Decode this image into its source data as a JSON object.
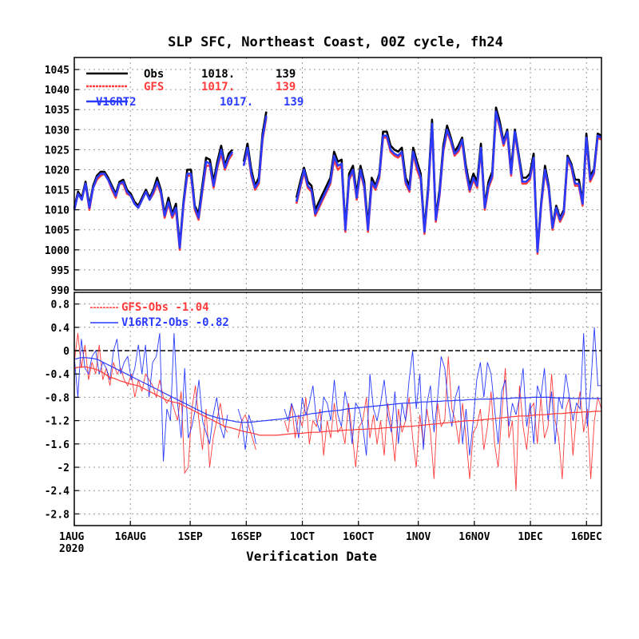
{
  "chart_data": [
    {
      "type": "line",
      "title": "SLP SFC, Northeast Coast, 00Z cycle, fh24",
      "xlabel": "Verification Date",
      "ylim": [
        990,
        1048
      ],
      "yticks": [
        "990",
        "995",
        "1000",
        "1005",
        "1010",
        "1015",
        "1020",
        "1025",
        "1030",
        "1035",
        "1040",
        "1045"
      ],
      "legend_position": "top-left",
      "series": [
        {
          "name": "Obs",
          "mean": "1018.",
          "count": "139",
          "color": "#000000"
        },
        {
          "name": "GFS",
          "mean": "1017.",
          "count": "139",
          "color": "#ff3b3b"
        },
        {
          "name": "V16RT2",
          "mean": "1017.",
          "count": "139",
          "color": "#2a3bff"
        }
      ],
      "x_start": "2020-08-01",
      "obs_values": [
        1010.5,
        1014.5,
        1013,
        1017,
        1011,
        1016,
        1018.5,
        1019.5,
        1019.5,
        1018,
        1016,
        1014,
        1017,
        1017.5,
        1015,
        1014,
        1012,
        1011,
        1013,
        1015,
        1013,
        1015,
        1018,
        1015,
        1009,
        1013,
        1009,
        1011.5,
        1001,
        1012,
        1020,
        1020,
        1011,
        1009,
        1016,
        1023,
        1022.5,
        1017,
        1022,
        1026,
        1021,
        1024,
        1025,
        null,
        null,
        1022,
        1026.5,
        1020,
        1016,
        1018,
        1029,
        1034.5,
        null,
        null,
        null,
        null,
        null,
        null,
        null,
        1013,
        1017,
        1020.5,
        1017,
        1016,
        1010,
        1012,
        1014,
        1016,
        1018,
        1024.5,
        1022,
        1022.5,
        1005.5,
        1019,
        1021,
        1014,
        1021,
        1017,
        1006,
        1018,
        1016,
        1019,
        1029.5,
        1029.5,
        1026,
        1025,
        1024.5,
        1025.5,
        1018,
        1016,
        1025.5,
        1022,
        1019,
        1005,
        1016,
        1032.5,
        1008,
        1015,
        1026,
        1031,
        1028,
        1024.5,
        1026,
        1028,
        1021,
        1016,
        1019,
        1017,
        1026.5,
        1011,
        1017,
        1019.5,
        1035.5,
        1032,
        1027,
        1030,
        1020,
        1030,
        1024,
        1018,
        1018,
        1019,
        1024,
        1000,
        1012,
        1021,
        1016,
        1006,
        1011,
        1008,
        1010,
        1023.5,
        1021.5,
        1017.5,
        1017.5,
        1012,
        1029,
        1018.5,
        1020,
        1029,
        1028.5
      ],
      "gfs_values": [
        1010,
        1014,
        1012.5,
        1016.5,
        1010,
        1015.5,
        1017.5,
        1018.5,
        1019,
        1017.5,
        1015,
        1013,
        1016.5,
        1016.5,
        1014,
        1013.5,
        1011.5,
        1010.5,
        1012.5,
        1014.5,
        1012.5,
        1014,
        1016.5,
        1014,
        1008,
        1011.5,
        1008,
        1010,
        1000,
        1011,
        1018.5,
        1018.5,
        1010,
        1007.5,
        1014.5,
        1021,
        1021,
        1015.5,
        1020.5,
        1024,
        1020,
        1022.5,
        1024,
        null,
        null,
        1021,
        1025,
        1018.5,
        1015,
        1016.5,
        1027.5,
        1033,
        null,
        null,
        null,
        null,
        null,
        null,
        null,
        1011.5,
        1015.5,
        1019.5,
        1015.5,
        1014.5,
        1008.5,
        1010.5,
        1012.5,
        1014.5,
        1016.5,
        1022.5,
        1020,
        1021,
        1004.5,
        1017.5,
        1019.5,
        1012.5,
        1019.5,
        1015.5,
        1004.5,
        1016.5,
        1015,
        1018,
        1028,
        1028,
        1024.5,
        1023.5,
        1023,
        1024,
        1016.5,
        1014.5,
        1024,
        1020,
        1017.5,
        1004,
        1014.5,
        1031,
        1007,
        1013.5,
        1024.5,
        1029.5,
        1027,
        1023.5,
        1024.5,
        1027,
        1019.5,
        1014.5,
        1017.5,
        1015.5,
        1025,
        1010,
        1015.5,
        1018,
        1034,
        1030.5,
        1026,
        1029,
        1018.5,
        1029,
        1023,
        1016.5,
        1016.5,
        1017.5,
        1022.5,
        999,
        1011,
        1019.5,
        1015,
        1005,
        1010,
        1007,
        1009,
        1022.5,
        1020.5,
        1016,
        1016,
        1011,
        1027.5,
        1017,
        1019,
        1028,
        1027.5
      ],
      "v16_values": [
        1010,
        1014,
        1012.5,
        1016.5,
        1010.5,
        1015.5,
        1018,
        1019,
        1019,
        1017.5,
        1015.5,
        1013.5,
        1016.5,
        1017,
        1014.5,
        1013.5,
        1011.5,
        1010.5,
        1012.5,
        1014.5,
        1012.5,
        1014.5,
        1017,
        1014.5,
        1008.5,
        1012,
        1008.5,
        1010.5,
        1000.5,
        1011.5,
        1019,
        1019,
        1010.5,
        1008,
        1015,
        1022,
        1021.5,
        1016,
        1021,
        1025,
        1020.5,
        1023,
        1024.5,
        null,
        null,
        1021,
        1025.5,
        1019,
        1015.5,
        1017,
        1028,
        1033.5,
        null,
        null,
        null,
        null,
        null,
        null,
        null,
        1012,
        1016,
        1020,
        1016,
        1015,
        1009,
        1011,
        1013,
        1015,
        1017,
        1023.5,
        1021,
        1021.5,
        1005,
        1018,
        1020,
        1013,
        1020,
        1016,
        1005,
        1017,
        1015.5,
        1018.5,
        1028.5,
        1028.5,
        1025,
        1024,
        1023.5,
        1024.5,
        1017,
        1015,
        1024.5,
        1021,
        1018,
        1004.5,
        1015,
        1031.5,
        1007.5,
        1014,
        1025,
        1030,
        1027.5,
        1024,
        1025,
        1027.5,
        1020,
        1015,
        1018,
        1016,
        1025.5,
        1010.5,
        1016,
        1018.5,
        1034.5,
        1031,
        1026.5,
        1029.5,
        1019,
        1029.5,
        1023.5,
        1017,
        1017,
        1018,
        1023,
        999.5,
        1011.5,
        1020,
        1015.5,
        1005.5,
        1010.5,
        1007.5,
        1009.5,
        1023,
        1021,
        1016.5,
        1016.5,
        1011.5,
        1028,
        1017.5,
        1019.5,
        1028.5,
        1028
      ]
    },
    {
      "type": "line",
      "ylim": [
        -3.0,
        1.0
      ],
      "yticks": [
        "-2.8",
        "-2.4",
        "-2",
        "-1.6",
        "-1.2",
        "-0.8",
        "-0.4",
        "0",
        "0.4",
        "0.8"
      ],
      "legend_position": "top-left",
      "series": [
        {
          "name": "GFS-Obs",
          "mean": "-1.04",
          "color": "#ff3b3b"
        },
        {
          "name": "V16RT2-Obs",
          "mean": "-0.82",
          "color": "#2a3bff"
        }
      ],
      "diff_gfs": [
        -0.2,
        0.3,
        -0.3,
        0.1,
        -0.5,
        -0.2,
        -0.4,
        0.1,
        -0.5,
        -0.3,
        -0.6,
        -0.2,
        -0.4,
        -0.3,
        -0.5,
        -0.6,
        -0.4,
        -0.8,
        -0.5,
        -0.7,
        -0.4,
        -0.5,
        -0.6,
        -0.8,
        -0.5,
        -0.8,
        -0.9,
        -0.8,
        -1.0,
        -1.2,
        -0.7,
        -2.1,
        -2.0,
        -1.0,
        -0.6,
        -1.2,
        -1.7,
        -1.0,
        -2.0,
        -1.5,
        -1.2,
        -0.9,
        -1.3,
        -1.4,
        null,
        null,
        -1.5,
        -1.2,
        -1.1,
        -1.3,
        -1.5,
        -1.7,
        null,
        null,
        null,
        null,
        null,
        null,
        null,
        -1.2,
        -1.4,
        -0.9,
        -1.5,
        -1.1,
        -1.3,
        -0.8,
        -1.6,
        -1.2,
        -1.3,
        -1.0,
        -1.8,
        -1.2,
        -1.5,
        -0.9,
        -1.4,
        -1.3,
        -1.6,
        -0.9,
        -1.4,
        -2.0,
        -1.3,
        -1.2,
        -0.8,
        -1.5,
        -1.1,
        -1.6,
        -1.2,
        -1.8,
        -0.9,
        -1.3,
        -1.9,
        -1.0,
        -1.4,
        -1.2,
        -0.8,
        -1.5,
        -2.0,
        -1.1,
        -1.6,
        -1.0,
        -1.4,
        -2.2,
        -0.9,
        -1.3,
        -1.2,
        -0.1,
        -1.0,
        -1.2,
        -1.6,
        -0.9,
        -1.5,
        -2.2,
        -1.4,
        -1.3,
        -1.0,
        -1.7,
        -1.3,
        -0.7,
        -1.6,
        -2.0,
        -1.1,
        -0.3,
        -1.5,
        -1.2,
        -2.4,
        -0.6,
        -1.3,
        -1.7,
        -1.0,
        -0.9,
        -1.6,
        -0.8,
        -1.5,
        -1.3,
        -0.4,
        -1.2,
        -1.5,
        -2.2,
        -1.0,
        -0.8,
        -1.8,
        -1.1,
        -0.7,
        -1.4,
        -1.0,
        -2.2,
        -1.2,
        -0.8,
        -1.0
      ],
      "diff_v16": [
        -0.1,
        -0.8,
        0.2,
        -0.3,
        -0.4,
        -0.1,
        0.0,
        -0.4,
        -0.2,
        -0.3,
        -0.5,
        0.0,
        0.2,
        -0.4,
        -0.2,
        -0.1,
        -0.5,
        -0.3,
        0.1,
        -0.4,
        0.1,
        -0.8,
        -0.2,
        -0.1,
        0.3,
        -1.9,
        -1.0,
        -1.2,
        0.3,
        -0.9,
        -1.5,
        -0.3,
        -1.5,
        -1.3,
        -1.0,
        -0.5,
        -1.2,
        -1.4,
        -1.6,
        -1.1,
        -0.8,
        -1.3,
        -1.5,
        -1.1,
        null,
        null,
        -1.0,
        -1.2,
        -1.7,
        -1.1,
        -1.3,
        -1.6,
        null,
        null,
        null,
        null,
        null,
        null,
        null,
        -1.0,
        -1.2,
        -0.9,
        -1.1,
        -1.5,
        -0.8,
        -1.1,
        -0.9,
        -0.6,
        -1.2,
        -1.4,
        -0.8,
        -0.9,
        -1.2,
        -0.5,
        -1.1,
        -1.3,
        -0.7,
        -1.0,
        -1.6,
        -0.9,
        -1.0,
        -1.3,
        -1.8,
        -0.4,
        -1.0,
        -1.2,
        -0.9,
        -0.5,
        -1.1,
        -1.4,
        -0.7,
        -1.6,
        -0.9,
        -1.2,
        -0.5,
        0.0,
        -1.0,
        -0.4,
        -1.7,
        -0.9,
        -0.6,
        -1.4,
        -0.8,
        -0.1,
        -0.3,
        -0.9,
        -1.3,
        -0.8,
        -0.6,
        -1.6,
        -1.0,
        -1.8,
        -1.2,
        -0.5,
        -0.2,
        -0.8,
        -0.2,
        -0.4,
        -1.0,
        -1.6,
        -0.7,
        -0.5,
        -1.3,
        -0.9,
        -1.1,
        -0.8,
        -0.3,
        -1.3,
        -0.9,
        -1.6,
        -0.6,
        -0.8,
        -0.3,
        -1.2,
        -0.7,
        -1.6,
        -0.8,
        -1.0,
        -0.4,
        -0.8,
        -1.2,
        -0.9,
        -1.0,
        0.3,
        -1.3,
        -0.6,
        0.4,
        -0.6,
        -0.6
      ],
      "mean_gfs": [
        -0.3,
        -0.28,
        -0.28,
        -0.3,
        -0.33,
        -0.38,
        -0.45,
        -0.48,
        -0.52,
        -0.55,
        -0.58,
        -0.6,
        -0.65,
        -0.7,
        -0.75,
        -0.8,
        -0.85,
        -0.88,
        -0.9,
        -0.95,
        -1.0,
        -1.05,
        -1.1,
        -1.15,
        -1.2,
        -1.25,
        -1.3,
        -1.32,
        -1.35,
        -1.38,
        -1.4,
        -1.42,
        -1.45,
        -1.45,
        -1.45,
        -1.45,
        -1.44,
        -1.43,
        -1.42,
        -1.42,
        -1.41,
        -1.4,
        -1.4,
        -1.39,
        -1.38,
        -1.38,
        -1.37,
        -1.36,
        -1.36,
        -1.35,
        -1.35,
        -1.34,
        -1.34,
        -1.33,
        -1.32,
        -1.32,
        -1.31,
        -1.3,
        -1.3,
        -1.29,
        -1.28,
        -1.27,
        -1.26,
        -1.25,
        -1.24,
        -1.23,
        -1.22,
        -1.21,
        -1.2,
        -1.2,
        -1.19,
        -1.18,
        -1.17,
        -1.16,
        -1.15,
        -1.14,
        -1.13,
        -1.12,
        -1.12,
        -1.11,
        -1.1,
        -1.1,
        -1.09,
        -1.08,
        -1.08,
        -1.07,
        -1.06,
        -1.06,
        -1.05,
        -1.05,
        -1.04,
        -1.04
      ],
      "mean_v16": [
        -0.15,
        -0.12,
        -0.12,
        -0.13,
        -0.15,
        -0.2,
        -0.25,
        -0.3,
        -0.35,
        -0.4,
        -0.45,
        -0.5,
        -0.55,
        -0.6,
        -0.65,
        -0.7,
        -0.75,
        -0.8,
        -0.85,
        -0.9,
        -0.95,
        -1.0,
        -1.05,
        -1.1,
        -1.13,
        -1.16,
        -1.18,
        -1.2,
        -1.22,
        -1.23,
        -1.23,
        -1.22,
        -1.21,
        -1.2,
        -1.19,
        -1.18,
        -1.17,
        -1.15,
        -1.13,
        -1.12,
        -1.1,
        -1.08,
        -1.07,
        -1.05,
        -1.04,
        -1.03,
        -1.02,
        -1.0,
        -0.99,
        -0.98,
        -0.97,
        -0.96,
        -0.95,
        -0.94,
        -0.93,
        -0.92,
        -0.91,
        -0.9,
        -0.9,
        -0.89,
        -0.88,
        -0.88,
        -0.87,
        -0.87,
        -0.86,
        -0.86,
        -0.85,
        -0.85,
        -0.84,
        -0.84,
        -0.83,
        -0.83,
        -0.83,
        -0.82,
        -0.82,
        -0.82,
        -0.81,
        -0.81,
        -0.81,
        -0.8,
        -0.8,
        -0.8,
        -0.8,
        -0.81,
        -0.81,
        -0.81,
        -0.82,
        -0.82,
        -0.82,
        -0.82,
        -0.82,
        -0.82
      ]
    }
  ],
  "x_axis": {
    "ticks": [
      {
        "label": "1AUG",
        "day": 0
      },
      {
        "label": "16AUG",
        "day": 15
      },
      {
        "label": "1SEP",
        "day": 31
      },
      {
        "label": "16SEP",
        "day": 46
      },
      {
        "label": "1OCT",
        "day": 61
      },
      {
        "label": "16OCT",
        "day": 76
      },
      {
        "label": "1NOV",
        "day": 92
      },
      {
        "label": "16NOV",
        "day": 107
      },
      {
        "label": "1DEC",
        "day": 122
      },
      {
        "label": "16DEC",
        "day": 137
      }
    ],
    "year_label": "2020",
    "x_range_days": [
      0,
      141
    ]
  },
  "legend_top": [
    {
      "name": "Obs",
      "mean": "1018.",
      "count": "139"
    },
    {
      "name": "GFS",
      "mean": "1017.",
      "count": "139"
    },
    {
      "name": "V16RT2",
      "mean": "1017.",
      "count": "139"
    }
  ],
  "legend_bottom": [
    {
      "text": "GFS-Obs -1.04"
    },
    {
      "text": "V16RT2-Obs -0.82"
    }
  ],
  "colors": {
    "obs": "#000000",
    "gfs": "#ff3b3b",
    "v16": "#2a3bff"
  }
}
